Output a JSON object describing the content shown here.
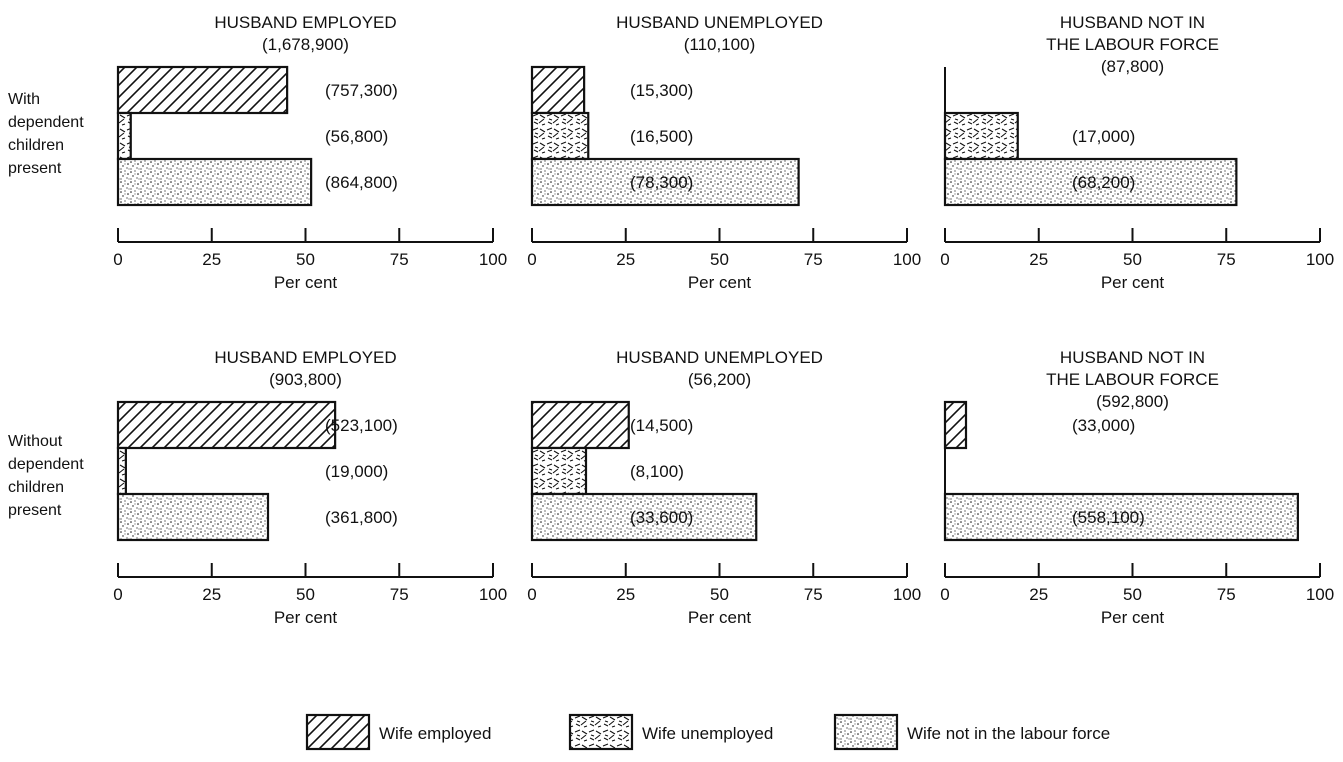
{
  "chart_data": {
    "type": "bar",
    "orientation": "horizontal",
    "xlabel": "Per cent",
    "xlim": [
      0,
      100
    ],
    "xticks": [
      "0",
      "25",
      "50",
      "75",
      "100"
    ],
    "legend": [
      {
        "name": "Wife employed",
        "pattern": "diagonal-hatch"
      },
      {
        "name": "Wife unemployed",
        "pattern": "wavy-hatch"
      },
      {
        "name": "Wife not in the labour force",
        "pattern": "stipple"
      }
    ],
    "legend_position": "bottom",
    "rows": [
      {
        "label": [
          "With",
          "dependent",
          "children",
          "present"
        ]
      },
      {
        "label": [
          "Without",
          "dependent",
          "children",
          "present"
        ]
      }
    ],
    "panels": [
      {
        "row": 0,
        "col": 0,
        "title": [
          "HUSBAND EMPLOYED"
        ],
        "total": "(1,678,900)",
        "bars": [
          {
            "series": "Wife employed",
            "value": 45.1,
            "count": "(757,300)"
          },
          {
            "series": "Wife unemployed",
            "value": 3.4,
            "count": "(56,800)"
          },
          {
            "series": "Wife not in the labour force",
            "value": 51.5,
            "count": "(864,800)"
          }
        ]
      },
      {
        "row": 0,
        "col": 1,
        "title": [
          "HUSBAND UNEMPLOYED"
        ],
        "total": "(110,100)",
        "bars": [
          {
            "series": "Wife employed",
            "value": 13.9,
            "count": "(15,300)"
          },
          {
            "series": "Wife unemployed",
            "value": 15.0,
            "count": "(16,500)"
          },
          {
            "series": "Wife not in the labour force",
            "value": 71.1,
            "count": "(78,300)"
          }
        ]
      },
      {
        "row": 0,
        "col": 2,
        "title": [
          "HUSBAND NOT IN",
          "THE LABOUR FORCE"
        ],
        "total": "(87,800)",
        "bars": [
          {
            "series": "Wife employed",
            "value": 0,
            "count": ""
          },
          {
            "series": "Wife unemployed",
            "value": 19.4,
            "count": "(17,000)"
          },
          {
            "series": "Wife not in the labour force",
            "value": 77.7,
            "count": "(68,200)"
          }
        ]
      },
      {
        "row": 1,
        "col": 0,
        "title": [
          "HUSBAND EMPLOYED"
        ],
        "total": "(903,800)",
        "bars": [
          {
            "series": "Wife employed",
            "value": 57.9,
            "count": "(523,100)"
          },
          {
            "series": "Wife unemployed",
            "value": 2.1,
            "count": "(19,000)"
          },
          {
            "series": "Wife not in the labour force",
            "value": 40.0,
            "count": "(361,800)"
          }
        ]
      },
      {
        "row": 1,
        "col": 1,
        "title": [
          "HUSBAND UNEMPLOYED"
        ],
        "total": "(56,200)",
        "bars": [
          {
            "series": "Wife employed",
            "value": 25.8,
            "count": "(14,500)"
          },
          {
            "series": "Wife unemployed",
            "value": 14.4,
            "count": "(8,100)"
          },
          {
            "series": "Wife not in the labour force",
            "value": 59.8,
            "count": "(33,600)"
          }
        ]
      },
      {
        "row": 1,
        "col": 2,
        "title": [
          "HUSBAND NOT IN",
          "THE LABOUR FORCE"
        ],
        "total": "(592,800)",
        "bars": [
          {
            "series": "Wife employed",
            "value": 5.6,
            "count": "(33,000)"
          },
          {
            "series": "Wife unemployed",
            "value": 0,
            "count": ""
          },
          {
            "series": "Wife not in the labour force",
            "value": 94.1,
            "count": "(558,100)"
          }
        ]
      }
    ]
  }
}
